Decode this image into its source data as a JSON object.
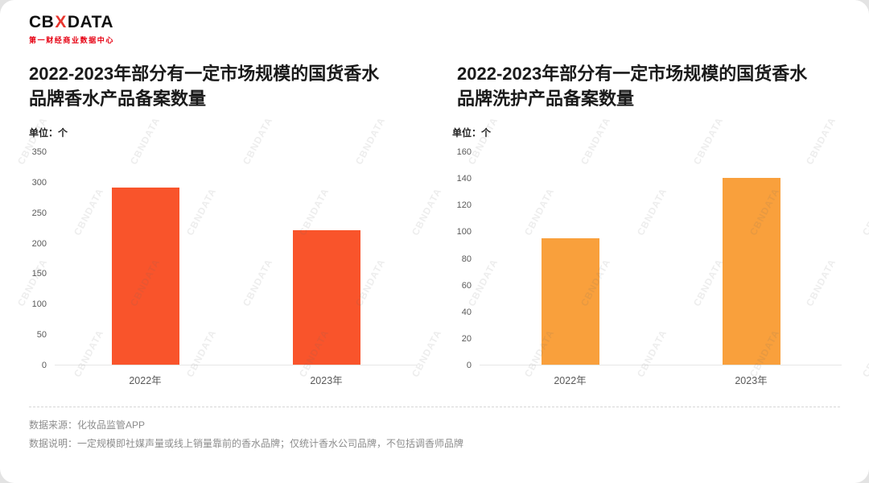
{
  "logo": {
    "text_left": "CB",
    "text_x": "X",
    "text_right": "DATA",
    "subtitle": "第一财经商业数据中心"
  },
  "watermark": "CBNDATA",
  "chart_data": [
    {
      "type": "bar",
      "title": "2022-2023年部分有一定市场规模的国货香水品牌香水产品备案数量",
      "title_lines": [
        "2022-2023年部分有一定市场规模的国货香水",
        "品牌香水产品备案数量"
      ],
      "unit_label": "单位：个",
      "categories": [
        "2022年",
        "2023年"
      ],
      "values": [
        290,
        220
      ],
      "ylim": [
        0,
        350
      ],
      "yticks": [
        0,
        50,
        100,
        150,
        200,
        250,
        300,
        350
      ],
      "ylabel": "",
      "xlabel": "",
      "bar_color": "#f9542b",
      "grid": false,
      "legend": "none"
    },
    {
      "type": "bar",
      "title": "2022-2023年部分有一定市场规模的国货香水品牌洗护产品备案数量",
      "title_lines": [
        "2022-2023年部分有一定市场规模的国货香水",
        "品牌洗护产品备案数量"
      ],
      "unit_label": "单位：个",
      "categories": [
        "2022年",
        "2023年"
      ],
      "values": [
        95,
        140
      ],
      "ylim": [
        0,
        160
      ],
      "yticks": [
        0,
        20,
        40,
        60,
        80,
        100,
        120,
        140,
        160
      ],
      "ylabel": "",
      "xlabel": "",
      "bar_color": "#f9a03c",
      "grid": false,
      "legend": "none"
    }
  ],
  "footer": {
    "source": "数据来源：化妆品监管APP",
    "note": "数据说明：一定规模即社媒声量或线上销量靠前的香水品牌；仅统计香水公司品牌，不包括调香师品牌"
  }
}
